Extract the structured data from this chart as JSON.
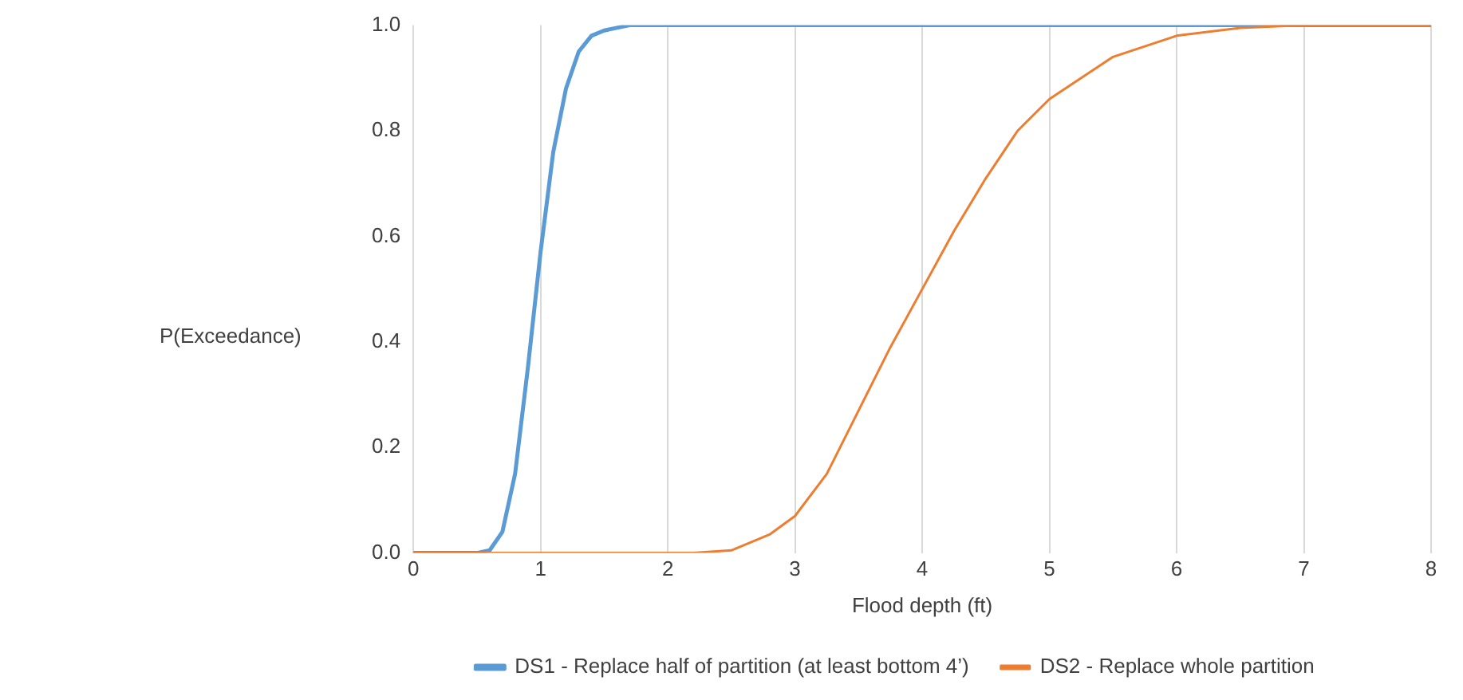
{
  "chart_data": {
    "type": "line",
    "xlabel": "Flood depth (ft)",
    "ylabel": "P(Exceedance)",
    "xlim": [
      0,
      8
    ],
    "xticks": [
      0,
      1,
      2,
      3,
      4,
      5,
      6,
      7,
      8
    ],
    "ylim": [
      0,
      1
    ],
    "yticks": [
      {
        "value": 0,
        "label": "0.0"
      },
      {
        "value": 0.2,
        "label": "0.2"
      },
      {
        "value": 0.4,
        "label": "0.4"
      },
      {
        "value": 0.6,
        "label": "0.6"
      },
      {
        "value": 0.8,
        "label": "0.8"
      },
      {
        "value": 1,
        "label": "1.0"
      }
    ],
    "grid": "x",
    "legend": "bottom",
    "marker": "none",
    "line_style": "solid",
    "series": [
      {
        "name": "DS1 - Replace half of partition (at least bottom 4’)",
        "color": "#5b9bd5",
        "x": [
          0,
          0.5,
          0.6,
          0.7,
          0.8,
          0.9,
          1.0,
          1.1,
          1.2,
          1.3,
          1.4,
          1.5,
          1.7,
          2,
          8
        ],
        "values": [
          0,
          0,
          0.005,
          0.04,
          0.15,
          0.35,
          0.57,
          0.76,
          0.88,
          0.95,
          0.98,
          0.99,
          1,
          1,
          1
        ]
      },
      {
        "name": "DS2 - Replace whole partition",
        "color": "#ed7d31",
        "x": [
          0,
          2.2,
          2.5,
          2.8,
          3,
          3.25,
          3.5,
          3.75,
          4,
          4.25,
          4.5,
          4.75,
          5,
          5.5,
          6,
          6.5,
          7,
          8
        ],
        "values": [
          0,
          0,
          0.005,
          0.035,
          0.07,
          0.15,
          0.27,
          0.39,
          0.5,
          0.61,
          0.71,
          0.8,
          0.86,
          0.94,
          0.98,
          0.995,
          1,
          1
        ]
      }
    ]
  }
}
